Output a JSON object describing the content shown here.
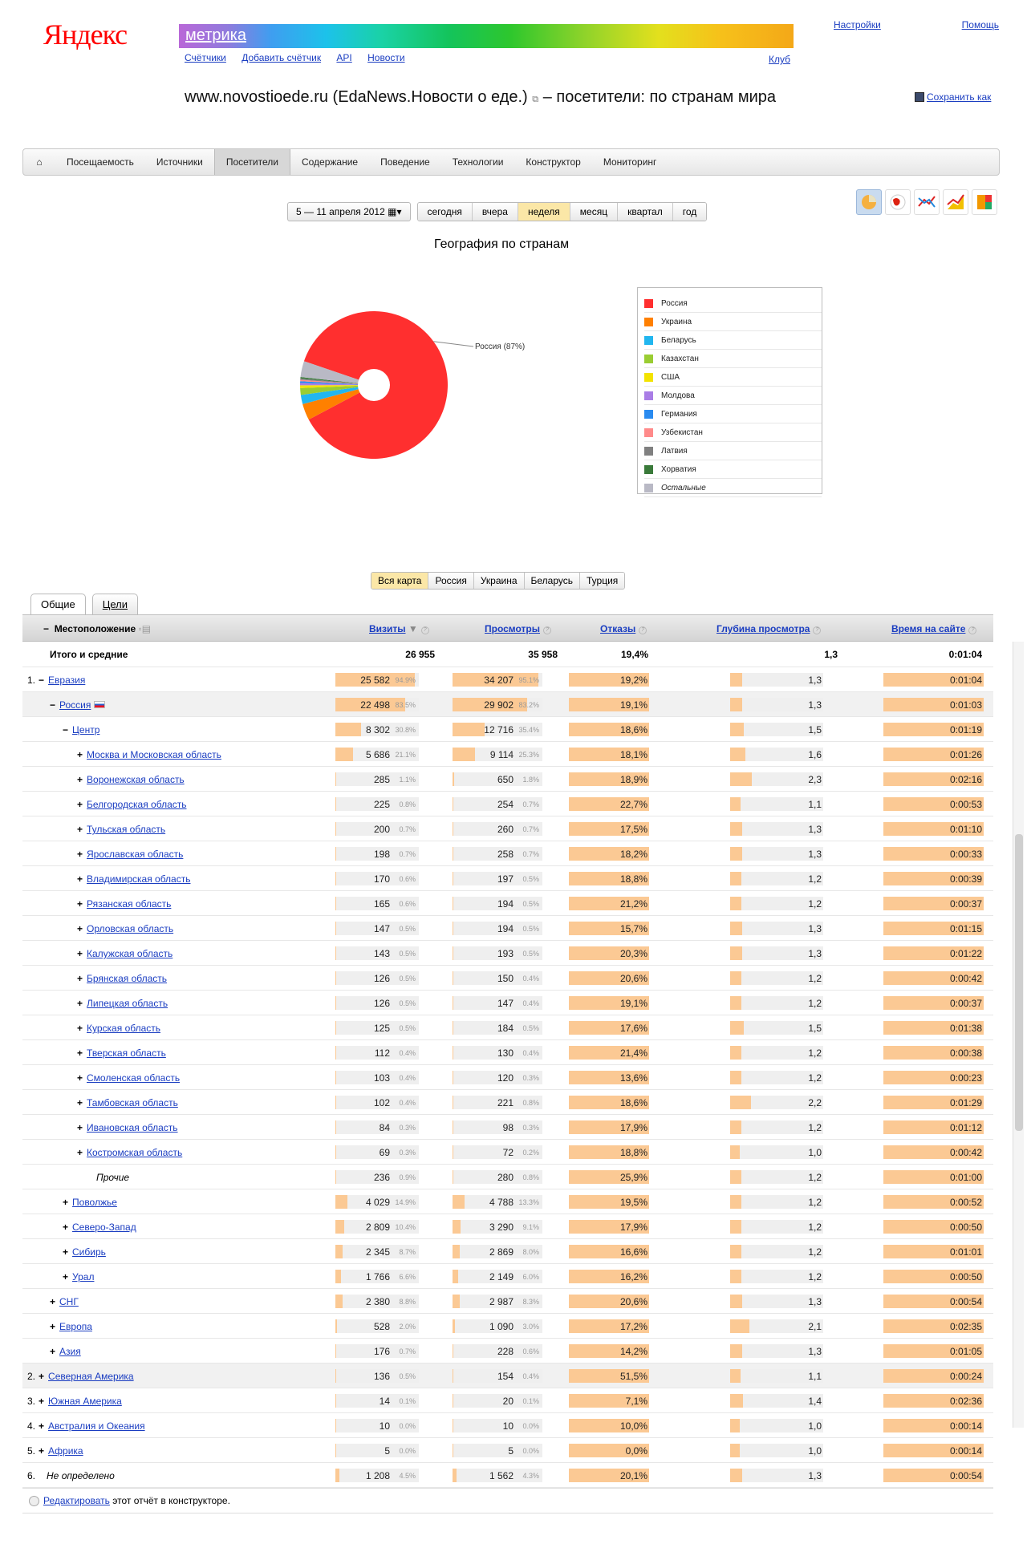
{
  "header": {
    "logo": "Яндекс",
    "product": "метрика",
    "subnav": [
      "Счётчики",
      "Добавить счётчик",
      "API",
      "Новости"
    ],
    "club": "Клуб",
    "settings": "Настройки",
    "help": "Помощь",
    "title": "www.novostioede.ru (EdaNews.Новости о еде.)",
    "title_suffix": "– посетители: по странам мира",
    "save_as": "Сохранить как"
  },
  "main_tabs": [
    "Посещаемость",
    "Источники",
    "Посетители",
    "Содержание",
    "Поведение",
    "Технологии",
    "Конструктор",
    "Мониторинг"
  ],
  "active_main_tab": "Посетители",
  "period": {
    "range": "5 — 11 апреля 2012",
    "options": [
      "сегодня",
      "вчера",
      "неделя",
      "месяц",
      "квартал",
      "год"
    ],
    "selected": "неделя"
  },
  "chart_data": {
    "type": "pie",
    "title": "География по странам",
    "slices": [
      {
        "label": "Россия",
        "value": 87,
        "color": "#ff2f2f"
      },
      {
        "label": "Украина",
        "value": 3.6,
        "color": "#ff8000"
      },
      {
        "label": "Беларусь",
        "value": 2.0,
        "color": "#21b6ef"
      },
      {
        "label": "Казахстан",
        "value": 1.5,
        "color": "#9acd32"
      },
      {
        "label": "США",
        "value": 0.6,
        "color": "#f3e300"
      },
      {
        "label": "Молдова",
        "value": 0.5,
        "color": "#a97de6"
      },
      {
        "label": "Германия",
        "value": 0.4,
        "color": "#2a8bf0"
      },
      {
        "label": "Узбекистан",
        "value": 0.3,
        "color": "#ff8a8a"
      },
      {
        "label": "Латвия",
        "value": 0.3,
        "color": "#808080"
      },
      {
        "label": "Хорватия",
        "value": 0.3,
        "color": "#3a7a3a"
      },
      {
        "label": "Остальные",
        "value": 3.5,
        "color": "#b9b9c5"
      }
    ],
    "callout": "Россия (87%)"
  },
  "map_tabs": [
    "Вся карта",
    "Россия",
    "Украина",
    "Беларусь",
    "Турция"
  ],
  "map_selected": "Вся карта",
  "report_tabs": [
    "Общие",
    "Цели"
  ],
  "columns": {
    "location": "Местоположение",
    "visits": "Визиты",
    "views": "Просмотры",
    "bounce": "Отказы",
    "depth": "Глубина просмотра",
    "time": "Время на сайте"
  },
  "totals": {
    "label": "Итого и средние",
    "visits": "26 955",
    "views": "35 958",
    "bounce": "19,4%",
    "depth": "1,3",
    "time": "0:01:04"
  },
  "rows": [
    {
      "level": 0,
      "num": "1.",
      "pm": "−",
      "name": "Евразия",
      "link": true,
      "v": "25 582",
      "vp": "94.9%",
      "vf": 0.949,
      "w": "34 207",
      "wp": "95.1%",
      "wf": 0.951,
      "b": "19,2%",
      "bf": 0.192,
      "d": "1,3",
      "df": 0.13,
      "t": "0:01:04",
      "tf": 0.25
    },
    {
      "level": 1,
      "pm": "−",
      "name": "Россия",
      "link": true,
      "flag": true,
      "shade": true,
      "v": "22 498",
      "vp": "83.5%",
      "vf": 0.835,
      "w": "29 902",
      "wp": "83.2%",
      "wf": 0.832,
      "b": "19,1%",
      "bf": 0.191,
      "d": "1,3",
      "df": 0.13,
      "t": "0:01:03",
      "tf": 0.25
    },
    {
      "level": 2,
      "pm": "−",
      "name": "Центр",
      "link": true,
      "v": "8 302",
      "vp": "30.8%",
      "vf": 0.308,
      "w": "12 716",
      "wp": "35.4%",
      "wf": 0.354,
      "b": "18,6%",
      "bf": 0.186,
      "d": "1,5",
      "df": 0.15,
      "t": "0:01:19",
      "tf": 0.3
    },
    {
      "level": 3,
      "pm": "+",
      "name": "Москва и Московская область",
      "link": true,
      "v": "5 686",
      "vp": "21.1%",
      "vf": 0.211,
      "w": "9 114",
      "wp": "25.3%",
      "wf": 0.253,
      "b": "18,1%",
      "bf": 0.181,
      "d": "1,6",
      "df": 0.16,
      "t": "0:01:26",
      "tf": 0.33
    },
    {
      "level": 3,
      "pm": "+",
      "name": "Воронежская область",
      "link": true,
      "v": "285",
      "vp": "1.1%",
      "vf": 0.011,
      "w": "650",
      "wp": "1.8%",
      "wf": 0.018,
      "b": "18,9%",
      "bf": 0.189,
      "d": "2,3",
      "df": 0.23,
      "t": "0:02:16",
      "tf": 0.52
    },
    {
      "level": 3,
      "pm": "+",
      "name": "Белгородская область",
      "link": true,
      "v": "225",
      "vp": "0.8%",
      "vf": 0.008,
      "w": "254",
      "wp": "0.7%",
      "wf": 0.007,
      "b": "22,7%",
      "bf": 0.227,
      "d": "1,1",
      "df": 0.11,
      "t": "0:00:53",
      "tf": 0.2
    },
    {
      "level": 3,
      "pm": "+",
      "name": "Тульская область",
      "link": true,
      "v": "200",
      "vp": "0.7%",
      "vf": 0.007,
      "w": "260",
      "wp": "0.7%",
      "wf": 0.007,
      "b": "17,5%",
      "bf": 0.175,
      "d": "1,3",
      "df": 0.13,
      "t": "0:01:10",
      "tf": 0.27
    },
    {
      "level": 3,
      "pm": "+",
      "name": "Ярославская область",
      "link": true,
      "v": "198",
      "vp": "0.7%",
      "vf": 0.007,
      "w": "258",
      "wp": "0.7%",
      "wf": 0.007,
      "b": "18,2%",
      "bf": 0.182,
      "d": "1,3",
      "df": 0.13,
      "t": "0:00:33",
      "tf": 0.13
    },
    {
      "level": 3,
      "pm": "+",
      "name": "Владимирская область",
      "link": true,
      "v": "170",
      "vp": "0.6%",
      "vf": 0.006,
      "w": "197",
      "wp": "0.5%",
      "wf": 0.005,
      "b": "18,8%",
      "bf": 0.188,
      "d": "1,2",
      "df": 0.12,
      "t": "0:00:39",
      "tf": 0.15
    },
    {
      "level": 3,
      "pm": "+",
      "name": "Рязанская область",
      "link": true,
      "v": "165",
      "vp": "0.6%",
      "vf": 0.006,
      "w": "194",
      "wp": "0.5%",
      "wf": 0.005,
      "b": "21,2%",
      "bf": 0.212,
      "d": "1,2",
      "df": 0.12,
      "t": "0:00:37",
      "tf": 0.14
    },
    {
      "level": 3,
      "pm": "+",
      "name": "Орловская область",
      "link": true,
      "v": "147",
      "vp": "0.5%",
      "vf": 0.005,
      "w": "194",
      "wp": "0.5%",
      "wf": 0.005,
      "b": "15,7%",
      "bf": 0.157,
      "d": "1,3",
      "df": 0.13,
      "t": "0:01:15",
      "tf": 0.29
    },
    {
      "level": 3,
      "pm": "+",
      "name": "Калужская область",
      "link": true,
      "v": "143",
      "vp": "0.5%",
      "vf": 0.005,
      "w": "193",
      "wp": "0.5%",
      "wf": 0.005,
      "b": "20,3%",
      "bf": 0.203,
      "d": "1,3",
      "df": 0.13,
      "t": "0:01:22",
      "tf": 0.31
    },
    {
      "level": 3,
      "pm": "+",
      "name": "Брянская область",
      "link": true,
      "v": "126",
      "vp": "0.5%",
      "vf": 0.005,
      "w": "150",
      "wp": "0.4%",
      "wf": 0.004,
      "b": "20,6%",
      "bf": 0.206,
      "d": "1,2",
      "df": 0.12,
      "t": "0:00:42",
      "tf": 0.16
    },
    {
      "level": 3,
      "pm": "+",
      "name": "Липецкая область",
      "link": true,
      "v": "126",
      "vp": "0.5%",
      "vf": 0.005,
      "w": "147",
      "wp": "0.4%",
      "wf": 0.004,
      "b": "19,1%",
      "bf": 0.191,
      "d": "1,2",
      "df": 0.12,
      "t": "0:00:37",
      "tf": 0.14
    },
    {
      "level": 3,
      "pm": "+",
      "name": "Курская область",
      "link": true,
      "v": "125",
      "vp": "0.5%",
      "vf": 0.005,
      "w": "184",
      "wp": "0.5%",
      "wf": 0.005,
      "b": "17,6%",
      "bf": 0.176,
      "d": "1,5",
      "df": 0.15,
      "t": "0:01:38",
      "tf": 0.37
    },
    {
      "level": 3,
      "pm": "+",
      "name": "Тверская область",
      "link": true,
      "v": "112",
      "vp": "0.4%",
      "vf": 0.004,
      "w": "130",
      "wp": "0.4%",
      "wf": 0.004,
      "b": "21,4%",
      "bf": 0.214,
      "d": "1,2",
      "df": 0.12,
      "t": "0:00:38",
      "tf": 0.15
    },
    {
      "level": 3,
      "pm": "+",
      "name": "Смоленская область",
      "link": true,
      "v": "103",
      "vp": "0.4%",
      "vf": 0.004,
      "w": "120",
      "wp": "0.3%",
      "wf": 0.003,
      "b": "13,6%",
      "bf": 0.136,
      "d": "1,2",
      "df": 0.12,
      "t": "0:00:23",
      "tf": 0.09
    },
    {
      "level": 3,
      "pm": "+",
      "name": "Тамбовская область",
      "link": true,
      "v": "102",
      "vp": "0.4%",
      "vf": 0.004,
      "w": "221",
      "wp": "0.8%",
      "wf": 0.008,
      "b": "18,6%",
      "bf": 0.186,
      "d": "2,2",
      "df": 0.22,
      "t": "0:01:29",
      "tf": 0.34
    },
    {
      "level": 3,
      "pm": "+",
      "name": "Ивановская область",
      "link": true,
      "v": "84",
      "vp": "0.3%",
      "vf": 0.003,
      "w": "98",
      "wp": "0.3%",
      "wf": 0.003,
      "b": "17,9%",
      "bf": 0.179,
      "d": "1,2",
      "df": 0.12,
      "t": "0:01:12",
      "tf": 0.27
    },
    {
      "level": 3,
      "pm": "+",
      "name": "Костромская область",
      "link": true,
      "v": "69",
      "vp": "0.3%",
      "vf": 0.003,
      "w": "72",
      "wp": "0.2%",
      "wf": 0.002,
      "b": "18,8%",
      "bf": 0.188,
      "d": "1,0",
      "df": 0.1,
      "t": "0:00:42",
      "tf": 0.16
    },
    {
      "level": 3,
      "pm": "",
      "name": "Прочие",
      "link": false,
      "italic": true,
      "v": "236",
      "vp": "0.9%",
      "vf": 0.009,
      "w": "280",
      "wp": "0.8%",
      "wf": 0.008,
      "b": "25,9%",
      "bf": 0.259,
      "d": "1,2",
      "df": 0.12,
      "t": "0:01:00",
      "tf": 0.23
    },
    {
      "level": 2,
      "pm": "+",
      "name": "Поволжье",
      "link": true,
      "v": "4 029",
      "vp": "14.9%",
      "vf": 0.149,
      "w": "4 788",
      "wp": "13.3%",
      "wf": 0.133,
      "b": "19,5%",
      "bf": 0.195,
      "d": "1,2",
      "df": 0.12,
      "t": "0:00:52",
      "tf": 0.2
    },
    {
      "level": 2,
      "pm": "+",
      "name": "Северо-Запад",
      "link": true,
      "v": "2 809",
      "vp": "10.4%",
      "vf": 0.104,
      "w": "3 290",
      "wp": "9.1%",
      "wf": 0.091,
      "b": "17,9%",
      "bf": 0.179,
      "d": "1,2",
      "df": 0.12,
      "t": "0:00:50",
      "tf": 0.19
    },
    {
      "level": 2,
      "pm": "+",
      "name": "Сибирь",
      "link": true,
      "v": "2 345",
      "vp": "8.7%",
      "vf": 0.087,
      "w": "2 869",
      "wp": "8.0%",
      "wf": 0.08,
      "b": "16,6%",
      "bf": 0.166,
      "d": "1,2",
      "df": 0.12,
      "t": "0:01:01",
      "tf": 0.23
    },
    {
      "level": 2,
      "pm": "+",
      "name": "Урал",
      "link": true,
      "v": "1 766",
      "vp": "6.6%",
      "vf": 0.066,
      "w": "2 149",
      "wp": "6.0%",
      "wf": 0.06,
      "b": "16,2%",
      "bf": 0.162,
      "d": "1,2",
      "df": 0.12,
      "t": "0:00:50",
      "tf": 0.19
    },
    {
      "level": 1,
      "pm": "+",
      "name": "СНГ",
      "link": true,
      "v": "2 380",
      "vp": "8.8%",
      "vf": 0.088,
      "w": "2 987",
      "wp": "8.3%",
      "wf": 0.083,
      "b": "20,6%",
      "bf": 0.206,
      "d": "1,3",
      "df": 0.13,
      "t": "0:00:54",
      "tf": 0.21
    },
    {
      "level": 1,
      "pm": "+",
      "name": "Европа",
      "link": true,
      "v": "528",
      "vp": "2.0%",
      "vf": 0.02,
      "w": "1 090",
      "wp": "3.0%",
      "wf": 0.03,
      "b": "17,2%",
      "bf": 0.172,
      "d": "2,1",
      "df": 0.21,
      "t": "0:02:35",
      "tf": 0.59
    },
    {
      "level": 1,
      "pm": "+",
      "name": "Азия",
      "link": true,
      "v": "176",
      "vp": "0.7%",
      "vf": 0.007,
      "w": "228",
      "wp": "0.6%",
      "wf": 0.006,
      "b": "14,2%",
      "bf": 0.142,
      "d": "1,3",
      "df": 0.13,
      "t": "0:01:05",
      "tf": 0.25
    },
    {
      "level": 0,
      "num": "2.",
      "pm": "+",
      "name": "Северная Америка",
      "link": true,
      "shade": true,
      "v": "136",
      "vp": "0.5%",
      "vf": 0.005,
      "w": "154",
      "wp": "0.4%",
      "wf": 0.004,
      "b": "51,5%",
      "bf": 0.515,
      "d": "1,1",
      "df": 0.11,
      "t": "0:00:24",
      "tf": 0.09
    },
    {
      "level": 0,
      "num": "3.",
      "pm": "+",
      "name": "Южная Америка",
      "link": true,
      "v": "14",
      "vp": "0.1%",
      "vf": 0.001,
      "w": "20",
      "wp": "0.1%",
      "wf": 0.001,
      "b": "7,1%",
      "bf": 0.071,
      "d": "1,4",
      "df": 0.14,
      "t": "0:02:36",
      "tf": 0.59
    },
    {
      "level": 0,
      "num": "4.",
      "pm": "+",
      "name": "Австралия и Океания",
      "link": true,
      "v": "10",
      "vp": "0.0%",
      "vf": 0.0,
      "w": "10",
      "wp": "0.0%",
      "wf": 0.0,
      "b": "10,0%",
      "bf": 0.1,
      "d": "1,0",
      "df": 0.1,
      "t": "0:00:14",
      "tf": 0.05
    },
    {
      "level": 0,
      "num": "5.",
      "pm": "+",
      "name": "Африка",
      "link": true,
      "v": "5",
      "vp": "0.0%",
      "vf": 0.0,
      "w": "5",
      "wp": "0.0%",
      "wf": 0.0,
      "b": "0,0%",
      "bf": 0.0,
      "d": "1,0",
      "df": 0.1,
      "t": "0:00:14",
      "tf": 0.05
    },
    {
      "level": 0,
      "num": "6.",
      "pm": "",
      "name": "Не определено",
      "link": false,
      "italic": true,
      "v": "1 208",
      "vp": "4.5%",
      "vf": 0.045,
      "w": "1 562",
      "wp": "4.3%",
      "wf": 0.043,
      "b": "20,1%",
      "bf": 0.201,
      "d": "1,3",
      "df": 0.13,
      "t": "0:00:54",
      "tf": 0.21
    }
  ],
  "footer": {
    "link": "Редактировать",
    "text": "этот отчёт в конструкторе."
  }
}
